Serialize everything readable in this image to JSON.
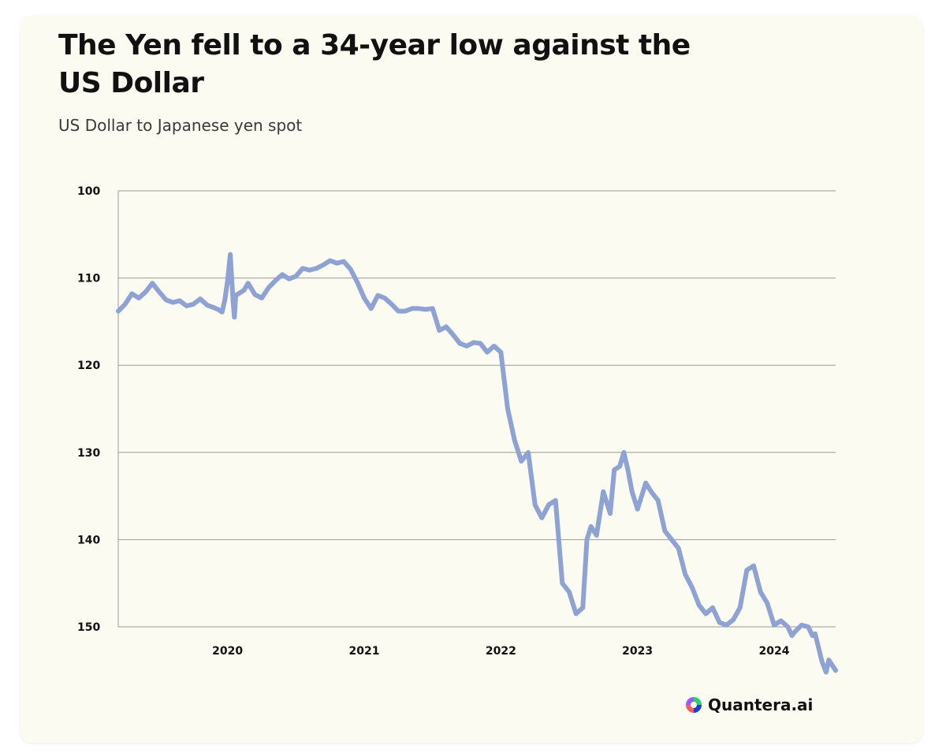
{
  "header": {
    "title": "The Yen fell to a 34-year low against the US Dollar",
    "subtitle": "US Dollar to Japanese yen spot"
  },
  "brand": {
    "name": "Quantera.ai",
    "logo_icon": "quantera-logo-icon",
    "logo_colors": [
      "#2ecc71",
      "#1f3bd1",
      "#ff5b5b",
      "#9b59ff"
    ]
  },
  "colors": {
    "line": "#8ea2d4",
    "grid": "#9a9a9a",
    "background": "#fbfbf2"
  },
  "chart_data": {
    "type": "line",
    "title": "The Yen fell to a 34-year low against the US Dollar",
    "subtitle": "US Dollar to Japanese yen spot",
    "xlabel": "",
    "ylabel": "",
    "y_inverted": true,
    "ylim": [
      100,
      150
    ],
    "yticks": [
      100,
      110,
      120,
      130,
      140,
      150
    ],
    "xlim": [
      2019.2,
      2024.45
    ],
    "xticks": [
      2020,
      2021,
      2022,
      2023,
      2024
    ],
    "grid": "horizontal",
    "legend": "none",
    "series": [
      {
        "x": [
          2019.2,
          2019.25,
          2019.3,
          2019.35,
          2019.4,
          2019.45,
          2019.5,
          2019.55,
          2019.6,
          2019.65,
          2019.7,
          2019.75,
          2019.8,
          2019.85,
          2019.9,
          2019.93,
          2019.96,
          2019.98,
          2020.0,
          2020.02,
          2020.04,
          2020.05,
          2020.06,
          2020.08,
          2020.1,
          2020.12,
          2020.15,
          2020.2,
          2020.25,
          2020.3,
          2020.35,
          2020.4,
          2020.45,
          2020.5,
          2020.55,
          2020.6,
          2020.65,
          2020.7,
          2020.75,
          2020.8,
          2020.85,
          2020.9,
          2020.95,
          2021.0,
          2021.05,
          2021.1,
          2021.15,
          2021.2,
          2021.25,
          2021.3,
          2021.35,
          2021.4,
          2021.45,
          2021.5,
          2021.55,
          2021.6,
          2021.65,
          2021.7,
          2021.75,
          2021.8,
          2021.85,
          2021.9,
          2021.95,
          2022.0,
          2022.05,
          2022.1,
          2022.15,
          2022.2,
          2022.25,
          2022.3,
          2022.35,
          2022.4,
          2022.45,
          2022.5,
          2022.55,
          2022.6,
          2022.63,
          2022.66,
          2022.7,
          2022.75,
          2022.78,
          2022.8,
          2022.83,
          2022.87,
          2022.9,
          2022.93,
          2022.96,
          2023.0,
          2023.03,
          2023.06,
          2023.1,
          2023.15,
          2023.2,
          2023.25,
          2023.3,
          2023.35,
          2023.4,
          2023.45,
          2023.5,
          2023.55,
          2023.6,
          2023.65,
          2023.7,
          2023.75,
          2023.8,
          2023.85,
          2023.9,
          2023.95,
          2024.0,
          2024.05,
          2024.1,
          2024.13,
          2024.15,
          2024.2,
          2024.25,
          2024.28,
          2024.3,
          2024.35,
          2024.38,
          2024.4,
          2024.45
        ],
        "values": [
          113.8,
          113.0,
          111.8,
          112.3,
          111.6,
          110.6,
          111.6,
          112.5,
          112.8,
          112.6,
          113.2,
          113.0,
          112.4,
          113.1,
          113.4,
          113.6,
          113.9,
          112.5,
          110.3,
          107.3,
          112.6,
          114.5,
          112.0,
          111.8,
          111.6,
          111.4,
          110.6,
          111.9,
          112.3,
          111.1,
          110.3,
          109.6,
          110.1,
          109.8,
          108.9,
          109.1,
          108.9,
          108.5,
          108.0,
          108.3,
          108.1,
          109.0,
          110.5,
          112.3,
          113.5,
          112.0,
          112.3,
          113.0,
          113.8,
          113.8,
          113.5,
          113.5,
          113.6,
          113.5,
          116.0,
          115.6,
          116.5,
          117.5,
          117.8,
          117.4,
          117.5,
          118.5,
          117.8,
          118.5,
          125.0,
          128.6,
          131.0,
          130.0,
          136.0,
          137.5,
          136.0,
          135.5,
          145.0,
          146.0,
          148.5,
          147.8,
          140.0,
          138.5,
          139.5,
          134.5,
          136.0,
          137.0,
          132.0,
          131.6,
          130.0,
          132.0,
          134.5,
          136.5,
          135.0,
          133.5,
          134.5,
          135.5,
          139.0,
          140.0,
          141.0,
          144.0,
          145.5,
          147.5,
          148.5,
          147.8,
          149.5,
          149.8,
          149.2,
          147.8,
          143.5,
          143.0,
          146.0,
          147.3,
          149.8,
          149.3,
          150.0,
          151.0,
          150.6,
          149.8,
          150.0,
          151.0,
          150.8,
          154.0,
          155.2,
          153.8,
          155.0
        ]
      }
    ]
  }
}
